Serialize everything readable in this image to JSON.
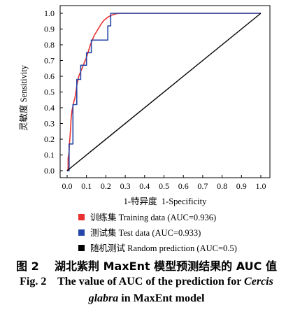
{
  "chart_data": {
    "type": "line",
    "xlabel": "1-特异度  1-Specificity",
    "ylabel": "灵敏度 Sensitivity",
    "xlim": [
      0,
      1
    ],
    "ylim": [
      0,
      1
    ],
    "grid": false,
    "legend_position": "bottom",
    "x_ticks": [
      "0.0",
      "0.1",
      "0.2",
      "0.3",
      "0.4",
      "0.5",
      "0.6",
      "0.7",
      "0.8",
      "0.9",
      "1.0"
    ],
    "y_ticks": [
      "0.0",
      "0.1",
      "0.2",
      "0.3",
      "0.4",
      "0.5",
      "0.6",
      "0.7",
      "0.8",
      "0.9",
      "1.0"
    ],
    "series": [
      {
        "name": "训练集 Training data (AUC=0.936)",
        "color": "#e8312f",
        "x": [
          0.0,
          0.005,
          0.005,
          0.01,
          0.012,
          0.015,
          0.018,
          0.02,
          0.022,
          0.025,
          0.03,
          0.035,
          0.04,
          0.045,
          0.05,
          0.055,
          0.06,
          0.07,
          0.08,
          0.09,
          0.1,
          0.11,
          0.12,
          0.13,
          0.14,
          0.15,
          0.16,
          0.17,
          0.18,
          0.19,
          0.2,
          0.21,
          0.22,
          0.23,
          0.24,
          0.25,
          0.26,
          0.28,
          0.3,
          0.35,
          0.4,
          0.5,
          0.6,
          0.7,
          0.8,
          0.9,
          1.0
        ],
        "y": [
          0.0,
          0.01,
          0.08,
          0.12,
          0.17,
          0.22,
          0.27,
          0.32,
          0.35,
          0.38,
          0.41,
          0.44,
          0.46,
          0.5,
          0.54,
          0.57,
          0.6,
          0.63,
          0.66,
          0.69,
          0.72,
          0.76,
          0.8,
          0.83,
          0.86,
          0.88,
          0.9,
          0.92,
          0.94,
          0.955,
          0.965,
          0.975,
          0.982,
          0.988,
          0.992,
          0.996,
          0.998,
          1.0,
          1.0,
          1.0,
          1.0,
          1.0,
          1.0,
          1.0,
          1.0,
          1.0,
          1.0
        ]
      },
      {
        "name": "测试集 Test data (AUC=0.933)",
        "color": "#2546a8",
        "x": [
          0.0,
          0.01,
          0.01,
          0.03,
          0.03,
          0.05,
          0.05,
          0.07,
          0.07,
          0.1,
          0.1,
          0.125,
          0.125,
          0.21,
          0.21,
          0.225,
          0.225,
          0.5,
          0.75,
          1.0
        ],
        "y": [
          0.0,
          0.0,
          0.17,
          0.17,
          0.42,
          0.42,
          0.58,
          0.58,
          0.67,
          0.67,
          0.75,
          0.75,
          0.83,
          0.83,
          0.92,
          0.92,
          1.0,
          1.0,
          1.0,
          1.0
        ]
      },
      {
        "name": "随机测试 Random prediction (AUC=0.5)",
        "color": "#000000",
        "x": [
          0.0,
          1.0
        ],
        "y": [
          0.0,
          1.0
        ]
      }
    ]
  },
  "caption": {
    "zh": "图 2    湖北紫荆 MaxEnt 模型预测结果的 AUC 值",
    "en_line1_prefix": "Fig. 2    The value of AUC of the prediction for ",
    "en_species_genus": "Cercis",
    "en_species_epithet": "glabra",
    "en_line2_suffix": " in MaxEnt model"
  }
}
